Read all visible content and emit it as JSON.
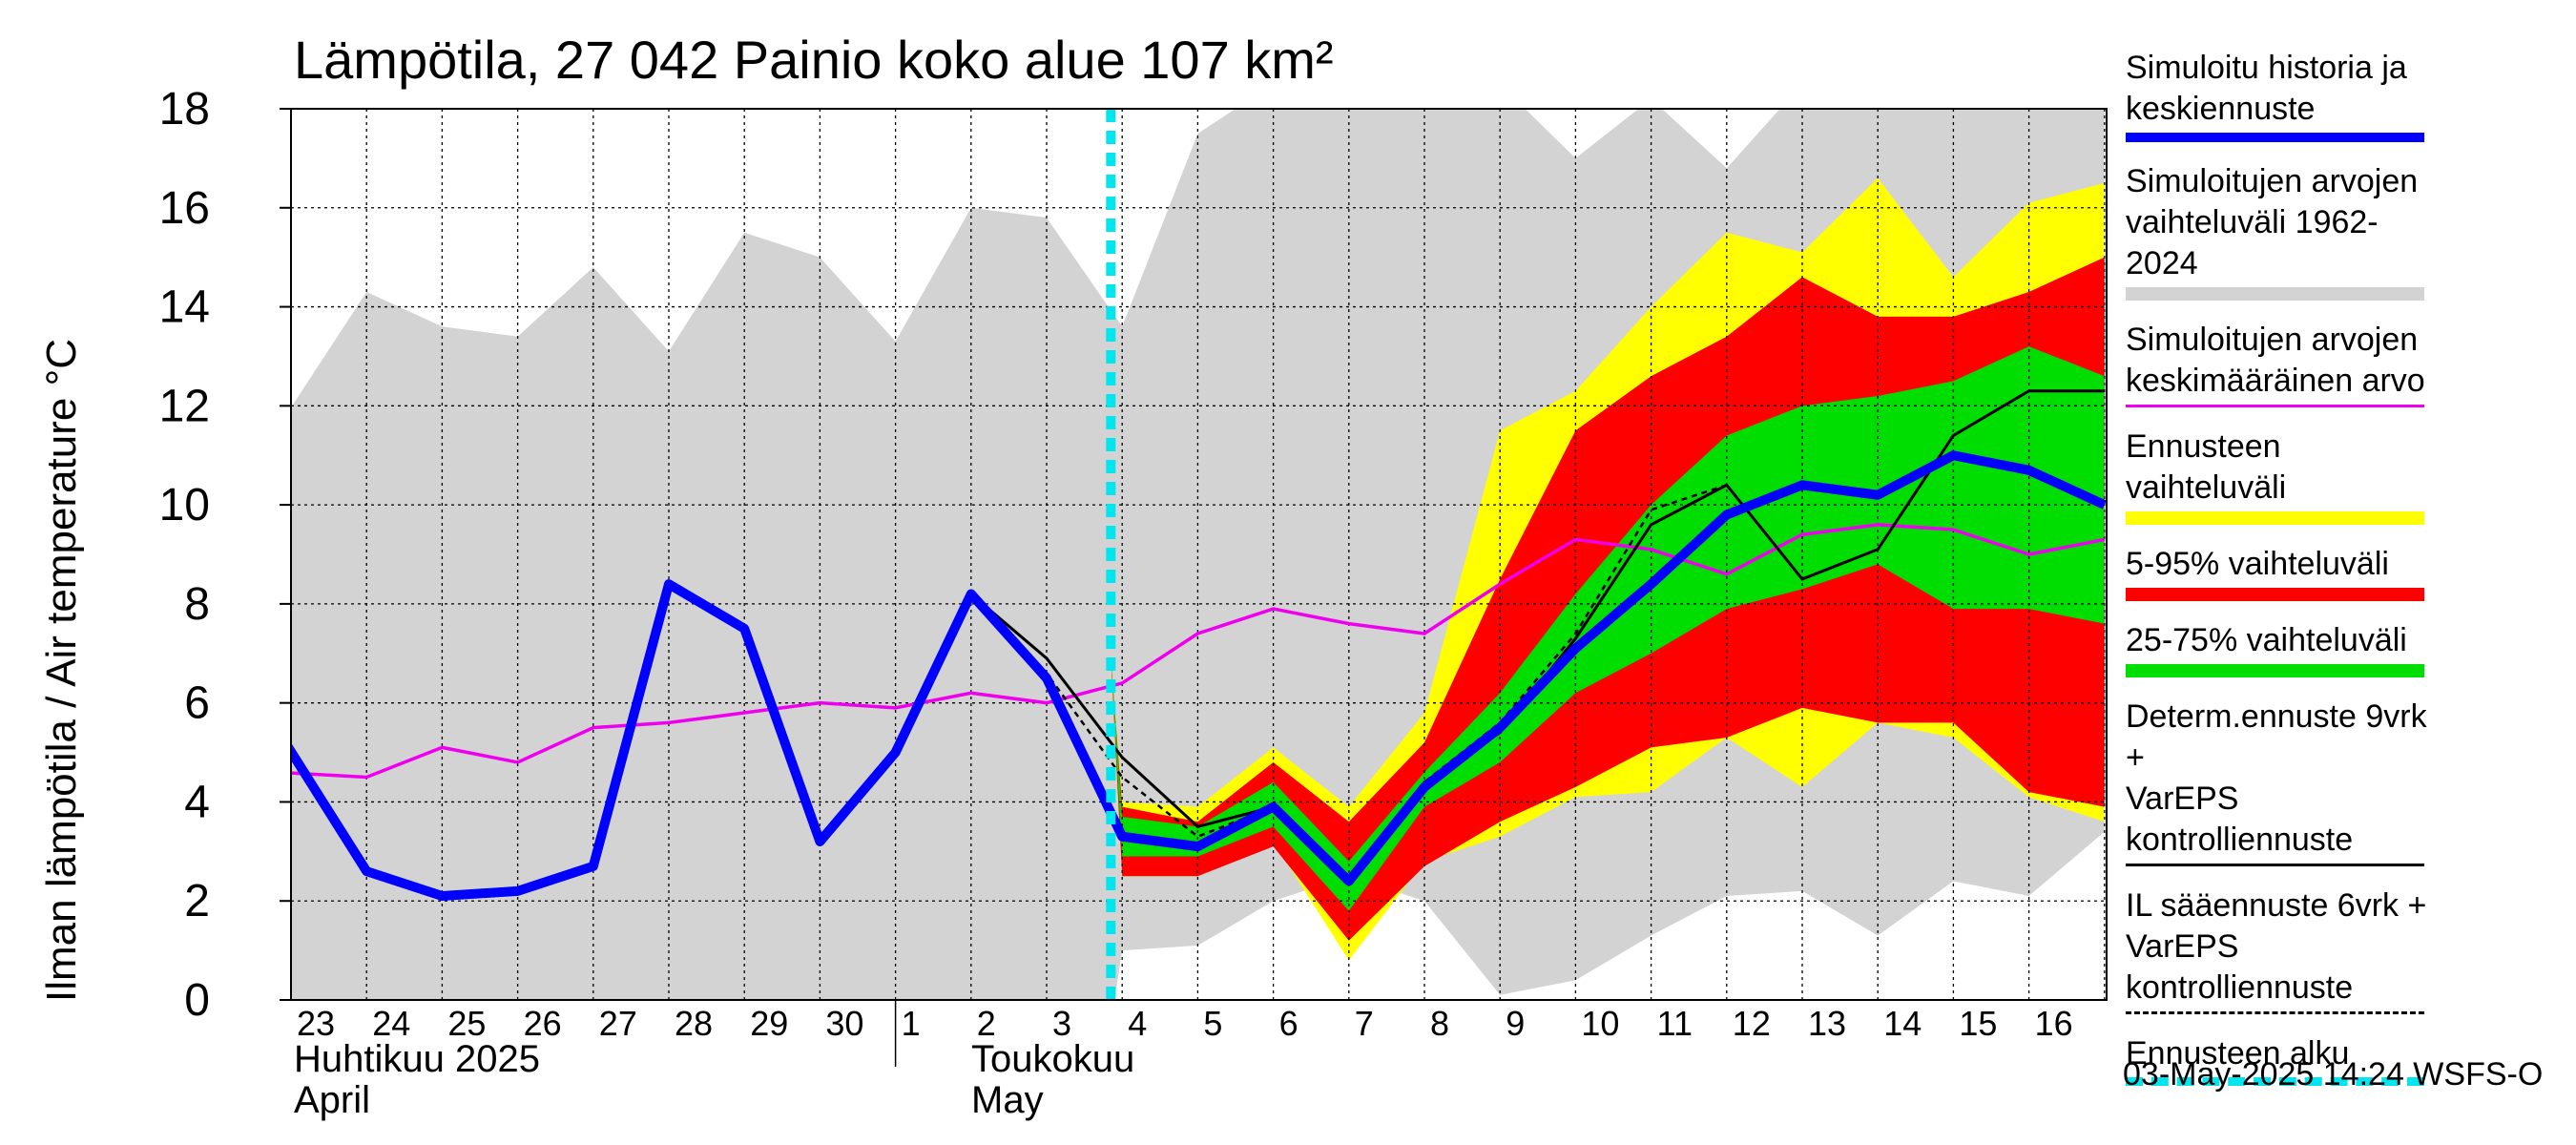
{
  "chart_data": {
    "type": "line",
    "title": "Lämpötila, 27 042 Painio koko alue 107 km²",
    "ylabel": "Ilman lämpötila / Air temperature    °C",
    "ylim": [
      0,
      18
    ],
    "yticks": [
      0,
      2,
      4,
      6,
      8,
      10,
      12,
      14,
      16,
      18
    ],
    "x_tick_labels": [
      "23",
      "24",
      "25",
      "26",
      "27",
      "28",
      "29",
      "30",
      "1",
      "2",
      "3",
      "4",
      "5",
      "6",
      "7",
      "8",
      "9",
      "10",
      "11",
      "12",
      "13",
      "14",
      "15",
      "16"
    ],
    "month_labels": [
      {
        "fi": "Huhtikuu  2025",
        "en": "April"
      },
      {
        "fi": "Toukokuu",
        "en": "May"
      }
    ],
    "forecast_start_day": 10.85,
    "historical_range": {
      "upper": [
        [
          -0.2,
          11.5
        ],
        [
          1,
          14.3
        ],
        [
          2,
          13.6
        ],
        [
          3,
          13.4
        ],
        [
          4,
          14.8
        ],
        [
          5,
          13.1
        ],
        [
          6,
          15.5
        ],
        [
          7,
          15.0
        ],
        [
          8,
          13.3
        ],
        [
          9,
          16.0
        ],
        [
          10,
          15.8
        ],
        [
          11,
          13.6
        ],
        [
          12,
          17.5
        ],
        [
          13,
          18.5
        ],
        [
          14,
          18.5
        ],
        [
          15,
          18.5
        ],
        [
          16,
          18.5
        ],
        [
          17,
          17.0
        ],
        [
          18,
          18.2
        ],
        [
          19,
          16.8
        ],
        [
          20,
          18.5
        ],
        [
          21,
          18.5
        ],
        [
          22,
          18.5
        ],
        [
          23,
          18.5
        ],
        [
          24,
          18.5
        ]
      ],
      "lower": [
        [
          -0.2,
          -0.5
        ],
        [
          10.85,
          -0.5
        ],
        [
          11,
          1.0
        ],
        [
          12,
          1.1
        ],
        [
          13,
          2.0
        ],
        [
          14,
          2.5
        ],
        [
          15,
          2.0
        ],
        [
          16,
          0.1
        ],
        [
          17,
          0.4
        ],
        [
          18,
          1.3
        ],
        [
          19,
          2.1
        ],
        [
          20,
          2.2
        ],
        [
          21,
          1.3
        ],
        [
          22,
          2.4
        ],
        [
          23,
          2.1
        ],
        [
          24,
          3.4
        ]
      ]
    },
    "forecast_range": {
      "x": [
        10.85,
        11,
        12,
        13,
        14,
        15,
        16,
        17,
        18,
        19,
        20,
        21,
        22,
        23,
        24
      ],
      "upper": [
        6.9,
        4.0,
        3.9,
        5.1,
        3.9,
        5.8,
        11.5,
        12.3,
        14.0,
        15.5,
        15.1,
        16.6,
        14.6,
        16.1,
        16.5
      ],
      "lower": [
        6.9,
        2.5,
        2.5,
        3.2,
        0.8,
        2.8,
        3.3,
        4.1,
        4.2,
        5.3,
        4.3,
        5.6,
        5.3,
        4.1,
        3.6
      ]
    },
    "range_5_95": {
      "x": [
        10.85,
        11,
        12,
        13,
        14,
        15,
        16,
        17,
        18,
        19,
        20,
        21,
        22,
        23,
        24
      ],
      "upper": [
        6.9,
        3.9,
        3.6,
        4.8,
        3.6,
        5.2,
        8.5,
        11.5,
        12.6,
        13.4,
        14.6,
        13.8,
        13.8,
        14.3,
        15.0
      ],
      "lower": [
        6.9,
        2.5,
        2.5,
        3.1,
        1.2,
        2.7,
        3.6,
        4.3,
        5.1,
        5.3,
        5.9,
        5.6,
        5.6,
        4.2,
        3.9
      ]
    },
    "range_25_75": {
      "x": [
        10.85,
        11,
        12,
        13,
        14,
        15,
        16,
        17,
        18,
        19,
        20,
        21,
        22,
        23,
        24
      ],
      "upper": [
        6.9,
        3.7,
        3.5,
        4.4,
        2.8,
        4.6,
        6.2,
        8.2,
        10.0,
        11.4,
        12.0,
        12.2,
        12.5,
        13.2,
        12.6
      ],
      "lower": [
        6.9,
        2.9,
        2.9,
        3.5,
        1.8,
        3.9,
        4.8,
        6.2,
        7.0,
        7.9,
        8.3,
        8.8,
        7.9,
        7.9,
        7.6
      ]
    },
    "series": [
      {
        "name": "Simuloitu historia ja keskiennuste",
        "color": "#0000ff",
        "x": [
          -0.2,
          1,
          2,
          3,
          4,
          5,
          6,
          7,
          8,
          9,
          10,
          11,
          12,
          13,
          14,
          15,
          16,
          17,
          18,
          19,
          20,
          21,
          22,
          23,
          24
        ],
        "values": [
          5.5,
          2.6,
          2.1,
          2.2,
          2.7,
          8.4,
          7.5,
          3.2,
          5.0,
          8.2,
          6.5,
          3.3,
          3.1,
          3.9,
          2.4,
          4.3,
          5.5,
          7.1,
          8.4,
          9.8,
          10.4,
          10.2,
          11.0,
          10.7,
          10.0
        ]
      },
      {
        "name": "Simuloitujen arvojen keskimääräinen arvo",
        "color": "#ee00ee",
        "x": [
          -0.2,
          1,
          2,
          3,
          4,
          5,
          6,
          7,
          8,
          9,
          10,
          11,
          12,
          13,
          14,
          15,
          16,
          17,
          18,
          19,
          20,
          21,
          22,
          23,
          24
        ],
        "values": [
          4.6,
          4.5,
          5.1,
          4.8,
          5.5,
          5.6,
          5.8,
          6.0,
          5.9,
          6.2,
          6.0,
          6.4,
          7.4,
          7.9,
          7.6,
          7.4,
          8.4,
          9.3,
          9.1,
          8.6,
          9.4,
          9.6,
          9.5,
          9.0,
          9.3
        ]
      },
      {
        "name": "Determ.ennuste 9vrk + VarEPS kontrolliennuste",
        "color": "#000000",
        "x": [
          9,
          10,
          11,
          12,
          13,
          14,
          15,
          16,
          17,
          18,
          19,
          20,
          21,
          22,
          23,
          24
        ],
        "values": [
          8.2,
          6.9,
          4.9,
          3.5,
          3.9,
          2.4,
          4.4,
          5.4,
          7.3,
          9.6,
          10.4,
          8.5,
          9.1,
          11.4,
          12.3,
          12.3
        ]
      },
      {
        "name": "IL sääennuste 6vrk + VarEPS kontrolliennuste",
        "color": "#000000",
        "x": [
          9,
          10,
          11,
          12,
          13,
          14,
          15,
          16,
          17,
          18,
          19
        ],
        "values": [
          8.2,
          6.6,
          4.5,
          3.3,
          3.9,
          2.5,
          4.4,
          5.6,
          7.4,
          9.9,
          10.4
        ]
      }
    ],
    "legend": [
      {
        "text": "Simuloitu historia ja\nkeskiennuste",
        "color": "#0000ff",
        "style": "solid-thick"
      },
      {
        "text": "Simuloitujen arvojen\nvaihteluväli 1962-2024",
        "color": "#d3d3d3",
        "style": "band"
      },
      {
        "text": "Simuloitujen arvojen\nkeskimääräinen arvo",
        "color": "#ee00ee",
        "style": "solid"
      },
      {
        "text": "Ennusteen vaihteluväli",
        "color": "#ffff00",
        "style": "band"
      },
      {
        "text": "5-95% vaihteluväli",
        "color": "#ff0000",
        "style": "band"
      },
      {
        "text": "25-75% vaihteluväli",
        "color": "#00dd00",
        "style": "band"
      },
      {
        "text": "Determ.ennuste 9vrk +\nVarEPS kontrolliennuste",
        "color": "#000000",
        "style": "solid"
      },
      {
        "text": "IL sääennuste 6vrk  +\n  VarEPS kontrolliennuste",
        "color": "#000000",
        "style": "dashed"
      },
      {
        "text": "Ennusteen alku",
        "color": "#00e5ee",
        "style": "dashed-thick"
      }
    ],
    "grid": true
  },
  "footer": "03-May-2025 14:24 WSFS-O"
}
